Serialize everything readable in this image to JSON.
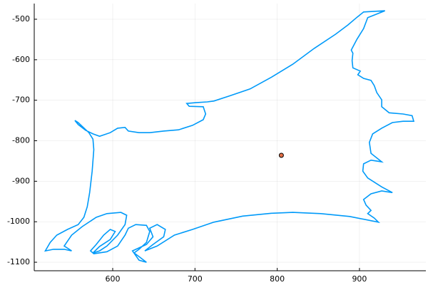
{
  "chart_data": {
    "type": "line",
    "xlim": [
      504.6,
      980.7
    ],
    "ylim": [
      -1121,
      -461.3
    ],
    "xticks": [
      600,
      700,
      800,
      900
    ],
    "yticks": [
      -500,
      -600,
      -700,
      -800,
      -900,
      -1000,
      -1100
    ],
    "grid": true,
    "series": [
      {
        "type": "line",
        "color": "#009af9",
        "x": [
          931,
          905,
          897,
          886,
          871,
          845,
          819,
          793,
          767,
          741,
          723,
          715,
          701,
          690,
          693,
          710,
          713,
          710,
          697,
          680,
          662,
          645,
          632,
          619,
          615,
          606,
          597,
          584,
          576,
          567,
          558,
          554,
          558,
          571,
          576,
          577,
          575,
          572,
          569,
          565,
          558,
          545,
          532,
          524,
          518,
          528,
          541,
          550,
          541,
          550,
          563,
          580,
          593,
          610,
          617,
          615,
          606,
          593,
          584,
          576,
          584,
          597,
          603,
          597,
          589,
          580,
          573,
          577,
          593,
          606,
          615,
          619,
          628,
          641,
          645,
          641,
          632,
          626,
          632,
          641,
          632,
          624,
          641,
          649,
          645,
          654,
          664,
          662,
          649,
          639,
          654,
          675,
          697,
          723,
          758,
          793,
          819,
          853,
          888,
          923,
          918,
          910,
          914,
          908,
          905,
          914,
          927,
          940,
          927,
          910,
          904,
          905,
          914,
          927,
          914,
          912,
          916,
          927,
          940,
          953,
          966,
          964,
          953,
          936,
          927,
          927,
          921,
          918,
          914,
          905,
          898,
          901,
          892,
          891,
          892,
          890,
          897,
          905,
          910,
          931
        ],
        "y": [
          -479,
          -482,
          -495,
          -514,
          -537,
          -572,
          -611,
          -643,
          -672,
          -690,
          -702,
          -704,
          -706,
          -708,
          -715,
          -716,
          -734,
          -748,
          -762,
          -773,
          -776,
          -780,
          -780,
          -776,
          -767,
          -769,
          -780,
          -789,
          -783,
          -774,
          -760,
          -750,
          -755,
          -780,
          -796,
          -822,
          -875,
          -928,
          -963,
          -989,
          -1007,
          -1019,
          -1033,
          -1051,
          -1072,
          -1068,
          -1068,
          -1072,
          -1060,
          -1033,
          -1012,
          -989,
          -980,
          -977,
          -984,
          -1007,
          -1033,
          -1060,
          -1072,
          -1077,
          -1061,
          -1044,
          -1024,
          -1019,
          -1033,
          -1056,
          -1072,
          -1079,
          -1074,
          -1060,
          -1033,
          -1016,
          -1007,
          -1009,
          -1024,
          -1051,
          -1068,
          -1077,
          -1086,
          -1100,
          -1095,
          -1072,
          -1056,
          -1037,
          -1016,
          -1007,
          -1019,
          -1037,
          -1056,
          -1072,
          -1060,
          -1033,
          -1019,
          -1001,
          -986,
          -979,
          -977,
          -980,
          -987,
          -1001,
          -991,
          -980,
          -972,
          -959,
          -945,
          -931,
          -924,
          -928,
          -914,
          -892,
          -875,
          -857,
          -848,
          -852,
          -831,
          -804,
          -783,
          -769,
          -755,
          -752,
          -752,
          -738,
          -734,
          -731,
          -716,
          -699,
          -681,
          -664,
          -651,
          -646,
          -637,
          -628,
          -620,
          -602,
          -584,
          -576,
          -549,
          -523,
          -496,
          -479
        ]
      },
      {
        "type": "scatter",
        "color": "#e26f46",
        "x": [
          805
        ],
        "y": [
          -836
        ]
      }
    ]
  }
}
